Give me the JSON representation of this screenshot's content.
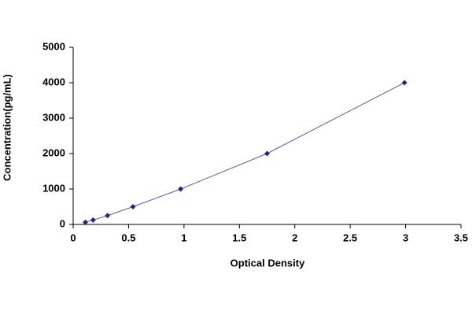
{
  "chart_data": {
    "type": "scatter",
    "x_label": "Optical Density",
    "y_label": "Concentration(pg/mL)",
    "x": [
      0.11,
      0.18,
      0.31,
      0.54,
      0.97,
      1.75,
      2.99
    ],
    "values": [
      62.5,
      125,
      250,
      500,
      1000,
      2000,
      4000
    ],
    "color": "#1f2a7a",
    "line": true,
    "line_color": "#5a5aa0",
    "xlim": [
      0,
      3.5
    ],
    "xticks": [
      0,
      0.5,
      1,
      1.5,
      2,
      2.5,
      3,
      3.5
    ],
    "ylim": [
      0,
      5000
    ],
    "yticks": [
      0,
      1000,
      2000,
      3000,
      4000,
      5000
    ],
    "grid": false
  }
}
